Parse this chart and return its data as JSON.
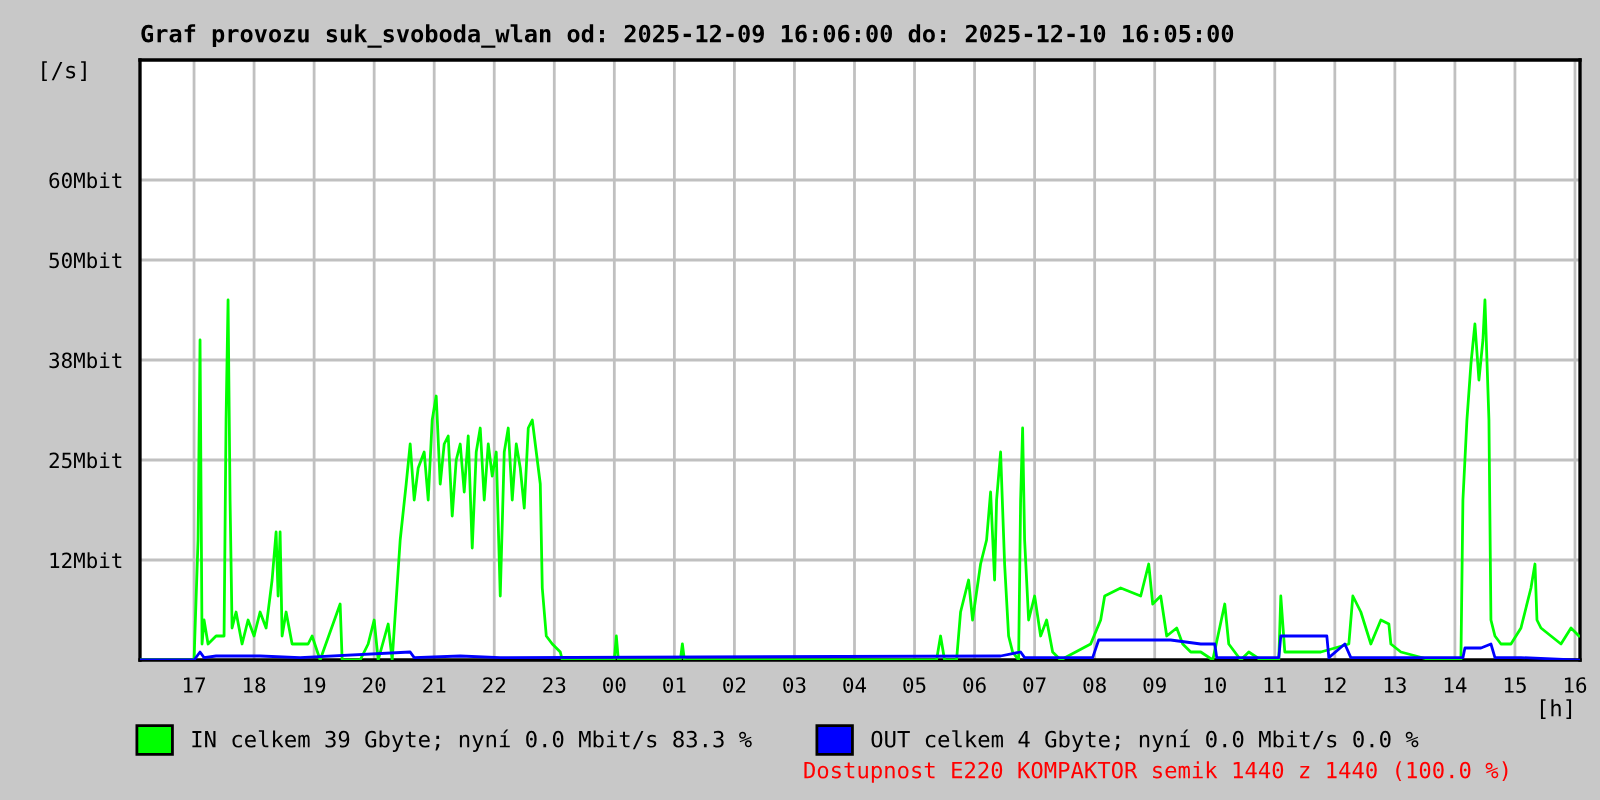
{
  "chart_data": {
    "type": "line",
    "title": "Graf provozu suk_svoboda_wlan od: 2025-12-09 16:06:00 do: 2025-12-10 16:05:00",
    "xlabel": "[h]",
    "ylabel": "[/s]",
    "xlim": [
      "2025-12-09T16:06",
      "2025-12-10T16:05"
    ],
    "xticks": [
      {
        "value": "2025-12-09T17:00",
        "label": "17"
      },
      {
        "value": "2025-12-09T18:00",
        "label": "18"
      },
      {
        "value": "2025-12-09T19:00",
        "label": "19"
      },
      {
        "value": "2025-12-09T20:00",
        "label": "20"
      },
      {
        "value": "2025-12-09T21:00",
        "label": "21"
      },
      {
        "value": "2025-12-09T22:00",
        "label": "22"
      },
      {
        "value": "2025-12-09T23:00",
        "label": "23"
      },
      {
        "value": "2025-12-10T00:00",
        "label": "00"
      },
      {
        "value": "2025-12-10T01:00",
        "label": "01"
      },
      {
        "value": "2025-12-10T02:00",
        "label": "02"
      },
      {
        "value": "2025-12-10T03:00",
        "label": "03"
      },
      {
        "value": "2025-12-10T04:00",
        "label": "04"
      },
      {
        "value": "2025-12-10T05:00",
        "label": "05"
      },
      {
        "value": "2025-12-10T06:00",
        "label": "06"
      },
      {
        "value": "2025-12-10T07:00",
        "label": "07"
      },
      {
        "value": "2025-12-10T08:00",
        "label": "08"
      },
      {
        "value": "2025-12-10T09:00",
        "label": "09"
      },
      {
        "value": "2025-12-10T10:00",
        "label": "10"
      },
      {
        "value": "2025-12-10T11:00",
        "label": "11"
      },
      {
        "value": "2025-12-10T12:00",
        "label": "12"
      },
      {
        "value": "2025-12-10T13:00",
        "label": "13"
      },
      {
        "value": "2025-12-10T14:00",
        "label": "14"
      },
      {
        "value": "2025-12-10T15:00",
        "label": "15"
      },
      {
        "value": "2025-12-10T16:00",
        "label": "16"
      }
    ],
    "ylim": [
      0,
      75
    ],
    "yticks": [
      {
        "value": 12.5,
        "label": "12Mbit"
      },
      {
        "value": 25,
        "label": "25Mbit"
      },
      {
        "value": 37.5,
        "label": "38Mbit"
      },
      {
        "value": 50,
        "label": "50Mbit"
      },
      {
        "value": 60,
        "label": "60Mbit"
      }
    ],
    "grid": true,
    "legend": "bottom",
    "series": [
      {
        "name": "IN celkem 39 Gbyte; nyní 0.0 Mbit/s 83.3 %",
        "color": "#00ff00",
        "x": [
          "2025-12-09T16:06",
          "2025-12-09T17:00",
          "2025-12-09T17:04",
          "2025-12-09T17:06",
          "2025-12-09T17:08",
          "2025-12-09T17:10",
          "2025-12-09T17:14",
          "2025-12-09T17:22",
          "2025-12-09T17:30",
          "2025-12-09T17:32",
          "2025-12-09T17:34",
          "2025-12-09T17:36",
          "2025-12-09T17:38",
          "2025-12-09T17:42",
          "2025-12-09T17:48",
          "2025-12-09T17:54",
          "2025-12-09T18:00",
          "2025-12-09T18:06",
          "2025-12-09T18:12",
          "2025-12-09T18:18",
          "2025-12-09T18:22",
          "2025-12-09T18:24",
          "2025-12-09T18:26",
          "2025-12-09T18:28",
          "2025-12-09T18:32",
          "2025-12-09T18:38",
          "2025-12-09T18:46",
          "2025-12-09T18:54",
          "2025-12-09T18:58",
          "2025-12-09T19:06",
          "2025-12-09T19:26",
          "2025-12-09T19:28",
          "2025-12-09T19:46",
          "2025-12-09T19:54",
          "2025-12-09T20:00",
          "2025-12-09T20:04",
          "2025-12-09T20:14",
          "2025-12-09T20:18",
          "2025-12-09T20:26",
          "2025-12-09T20:32",
          "2025-12-09T20:36",
          "2025-12-09T20:40",
          "2025-12-09T20:44",
          "2025-12-09T20:50",
          "2025-12-09T20:54",
          "2025-12-09T20:58",
          "2025-12-09T21:02",
          "2025-12-09T21:06",
          "2025-12-09T21:10",
          "2025-12-09T21:14",
          "2025-12-09T21:18",
          "2025-12-09T21:22",
          "2025-12-09T21:26",
          "2025-12-09T21:30",
          "2025-12-09T21:34",
          "2025-12-09T21:38",
          "2025-12-09T21:42",
          "2025-12-09T21:46",
          "2025-12-09T21:50",
          "2025-12-09T21:54",
          "2025-12-09T21:58",
          "2025-12-09T22:02",
          "2025-12-09T22:06",
          "2025-12-09T22:10",
          "2025-12-09T22:14",
          "2025-12-09T22:18",
          "2025-12-09T22:22",
          "2025-12-09T22:26",
          "2025-12-09T22:30",
          "2025-12-09T22:34",
          "2025-12-09T22:38",
          "2025-12-09T22:42",
          "2025-12-09T22:46",
          "2025-12-09T22:48",
          "2025-12-09T22:52",
          "2025-12-09T22:58",
          "2025-12-09T23:06",
          "2025-12-09T23:08",
          "2025-12-10T00:00",
          "2025-12-10T00:02",
          "2025-12-10T00:04",
          "2025-12-10T01:06",
          "2025-12-10T01:08",
          "2025-12-10T01:10",
          "2025-12-10T05:22",
          "2025-12-10T05:26",
          "2025-12-10T05:30",
          "2025-12-10T05:42",
          "2025-12-10T05:46",
          "2025-12-10T05:54",
          "2025-12-10T05:58",
          "2025-12-10T06:06",
          "2025-12-10T06:12",
          "2025-12-10T06:16",
          "2025-12-10T06:20",
          "2025-12-10T06:22",
          "2025-12-10T06:26",
          "2025-12-10T06:30",
          "2025-12-10T06:34",
          "2025-12-10T06:38",
          "2025-12-10T06:44",
          "2025-12-10T06:46",
          "2025-12-10T06:48",
          "2025-12-10T06:50",
          "2025-12-10T06:54",
          "2025-12-10T07:00",
          "2025-12-10T07:06",
          "2025-12-10T07:12",
          "2025-12-10T07:18",
          "2025-12-10T07:26",
          "2025-12-10T07:56",
          "2025-12-10T08:06",
          "2025-12-10T08:10",
          "2025-12-10T08:26",
          "2025-12-10T08:46",
          "2025-12-10T08:54",
          "2025-12-10T08:58",
          "2025-12-10T09:06",
          "2025-12-10T09:12",
          "2025-12-10T09:22",
          "2025-12-10T09:28",
          "2025-12-10T09:36",
          "2025-12-10T09:46",
          "2025-12-10T09:58",
          "2025-12-10T10:10",
          "2025-12-10T10:14",
          "2025-12-10T10:26",
          "2025-12-10T10:34",
          "2025-12-10T10:46",
          "2025-12-10T11:04",
          "2025-12-10T11:06",
          "2025-12-10T11:10",
          "2025-12-10T11:46",
          "2025-12-10T12:14",
          "2025-12-10T12:18",
          "2025-12-10T12:26",
          "2025-12-10T12:36",
          "2025-12-10T12:46",
          "2025-12-10T12:54",
          "2025-12-10T12:56",
          "2025-12-10T13:06",
          "2025-12-10T13:36",
          "2025-12-10T14:06",
          "2025-12-10T14:08",
          "2025-12-10T14:12",
          "2025-12-10T14:16",
          "2025-12-10T14:20",
          "2025-12-10T14:24",
          "2025-12-10T14:28",
          "2025-12-10T14:30",
          "2025-12-10T14:34",
          "2025-12-10T14:36",
          "2025-12-10T14:40",
          "2025-12-10T14:46",
          "2025-12-10T14:56",
          "2025-12-10T15:06",
          "2025-12-10T15:10",
          "2025-12-10T15:16",
          "2025-12-10T15:20",
          "2025-12-10T15:22",
          "2025-12-10T15:26",
          "2025-12-10T15:36",
          "2025-12-10T15:46",
          "2025-12-10T15:56",
          "2025-12-10T16:04"
        ],
        "values": [
          0,
          0,
          15,
          40,
          2,
          5,
          2,
          3,
          3,
          30,
          45,
          20,
          4,
          6,
          2,
          5,
          3,
          6,
          4,
          10,
          16,
          8,
          16,
          3,
          6,
          2,
          2,
          2,
          3,
          0,
          7,
          0,
          0,
          2,
          5,
          0,
          4.5,
          0,
          15,
          22,
          27,
          20,
          24,
          26,
          20,
          30,
          33,
          22,
          27,
          28,
          18,
          25,
          27,
          21,
          28,
          14,
          26,
          29,
          20,
          27,
          23,
          26,
          8,
          26,
          29,
          20,
          27,
          24,
          19,
          29,
          30,
          26,
          22,
          9,
          3,
          2,
          1,
          0,
          0,
          3,
          0,
          0,
          2,
          0,
          0,
          3,
          0,
          0,
          6,
          10,
          5,
          12,
          15,
          21,
          10,
          20,
          26,
          12,
          3,
          1,
          0,
          20,
          29,
          15,
          5,
          8,
          3,
          5,
          1,
          0,
          2,
          5,
          8,
          9,
          8,
          12,
          7,
          8,
          3,
          4,
          2,
          1,
          1,
          0,
          7,
          2,
          0,
          1,
          0,
          0,
          8,
          1,
          1,
          2,
          8,
          6,
          2,
          5,
          4.5,
          2,
          1,
          0,
          0,
          20,
          30,
          37,
          42,
          35,
          40,
          45,
          30,
          5,
          3,
          2,
          2,
          4,
          6,
          9,
          12,
          5,
          4,
          3,
          2,
          4,
          3
        ]
      },
      {
        "name": "OUT celkem 4 Gbyte; nyní 0.0 Mbit/s 0.0 %",
        "color": "#0000ff",
        "x": [
          "2025-12-09T16:06",
          "2025-12-09T17:00",
          "2025-12-09T17:06",
          "2025-12-09T17:10",
          "2025-12-09T17:22",
          "2025-12-09T18:06",
          "2025-12-09T18:46",
          "2025-12-09T20:36",
          "2025-12-09T20:40",
          "2025-12-09T21:26",
          "2025-12-09T22:06",
          "2025-12-10T06:26",
          "2025-12-10T06:46",
          "2025-12-10T06:50",
          "2025-12-10T07:58",
          "2025-12-10T08:04",
          "2025-12-10T08:26",
          "2025-12-10T08:56",
          "2025-12-10T09:16",
          "2025-12-10T09:46",
          "2025-12-10T10:00",
          "2025-12-10T10:02",
          "2025-12-10T11:04",
          "2025-12-10T11:06",
          "2025-12-10T11:52",
          "2025-12-10T11:54",
          "2025-12-10T12:10",
          "2025-12-10T12:16",
          "2025-12-10T14:08",
          "2025-12-10T14:10",
          "2025-12-10T14:26",
          "2025-12-10T14:36",
          "2025-12-10T14:40",
          "2025-12-10T15:06",
          "2025-12-10T16:04"
        ],
        "values": [
          0,
          0,
          1,
          0.3,
          0.5,
          0.5,
          0.3,
          1,
          0.3,
          0.5,
          0.3,
          0.5,
          1,
          0.3,
          0.3,
          2.5,
          2.5,
          2.5,
          2.5,
          2,
          2,
          0.3,
          0.3,
          3,
          3,
          0.3,
          2,
          0.3,
          0.3,
          1.5,
          1.5,
          2,
          0.3,
          0.3,
          0
        ]
      }
    ],
    "annotations": [
      "Dostupnost E220 KOMPAKTOR semik 1440 z 1440 (100.0 %)"
    ]
  }
}
